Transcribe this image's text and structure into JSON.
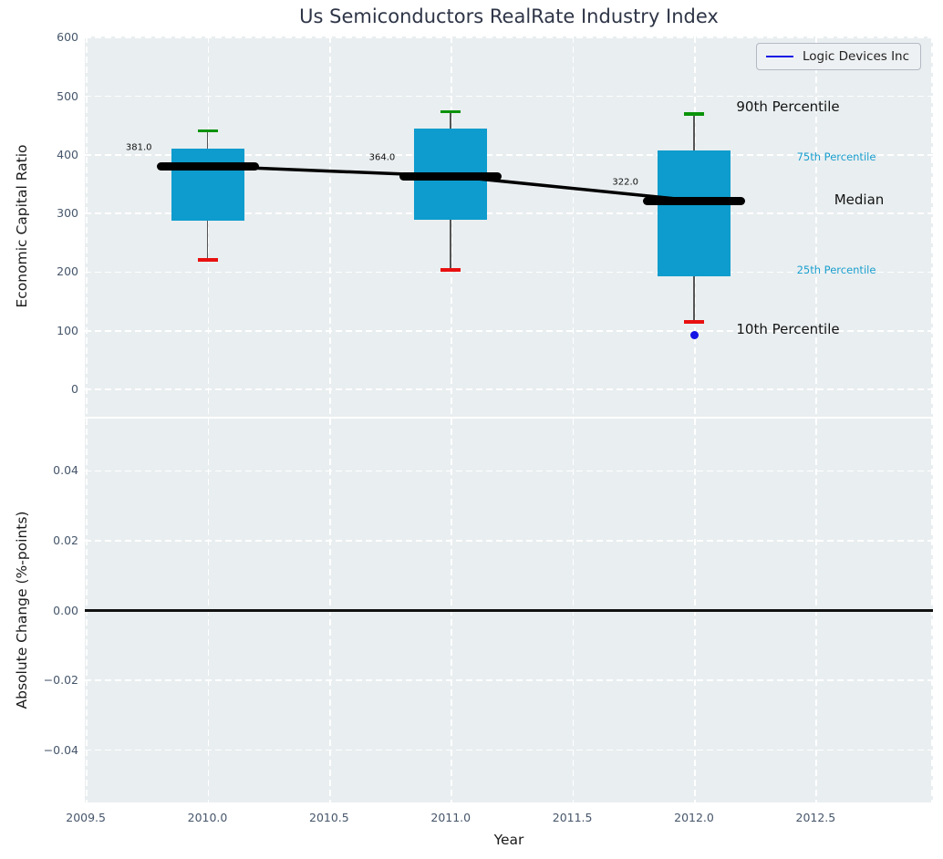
{
  "colors": {
    "box": "#0d9ccd",
    "p90_cap": "#0a930a",
    "p10_cap": "#e81010",
    "median_line": "#000000",
    "company_marker": "#1414e6",
    "axes_background": "#e9eef0",
    "grid": "#ffffff",
    "tick_label": "#46566b",
    "annotation_small": "#1a9fce"
  },
  "chart_data": [
    {
      "type": "boxplot-with-median-line",
      "title": "Us Semiconductors RealRate Industry Index",
      "ylabel": "Economic Capital Ratio",
      "legend": [
        "Logic Devices Inc"
      ],
      "legend_position": "upper right",
      "grid": "on",
      "yticks": [
        0,
        100,
        200,
        300,
        400,
        500,
        600
      ],
      "ytick_labels": [
        "0",
        "100",
        "200",
        "300",
        "400",
        "500",
        "600"
      ],
      "ylim": [
        -46.5,
        602
      ],
      "boxes": [
        {
          "year": 2010,
          "p10": 221,
          "p25": 288,
          "median": 381,
          "p75": 410,
          "p90": 441,
          "median_label": "381.0"
        },
        {
          "year": 2011,
          "p10": 204,
          "p25": 290,
          "median": 364,
          "p75": 445,
          "p90": 474,
          "median_label": "364.0"
        },
        {
          "year": 2012,
          "p10": 115,
          "p25": 193,
          "median": 322,
          "p75": 408,
          "p90": 470,
          "median_label": "322.0"
        }
      ],
      "median_series": {
        "x": [
          2010,
          2011,
          2012
        ],
        "y": [
          381,
          364,
          322
        ]
      },
      "company_point": {
        "name": "Logic Devices Inc",
        "year": 2012,
        "value": 92
      },
      "annotations": [
        "90th Percentile",
        "75th Percentile",
        "Median",
        "25th Percentile",
        "10th Percentile"
      ]
    },
    {
      "type": "line",
      "ylabel": "Absolute Change (%-points)",
      "xlabel": "Year",
      "grid": "on",
      "yticks": [
        0.04,
        0.02,
        0.0,
        -0.02,
        -0.04
      ],
      "ytick_labels": [
        "0.04",
        "0.02",
        "0.00",
        "−0.02",
        "−0.04"
      ],
      "ylim": [
        -0.055,
        0.055
      ],
      "xticks": [
        2009.5,
        2010.0,
        2010.5,
        2011.0,
        2011.5,
        2012.0,
        2012.5
      ],
      "xtick_labels": [
        "2009.5",
        "2010.0",
        "2010.5",
        "2011.0",
        "2011.5",
        "2012.0",
        "2012.5"
      ],
      "xgrid": [
        2009.5,
        2010.0,
        2010.5,
        2011.0,
        2011.5,
        2012.0,
        2012.5,
        2013.0
      ],
      "xlim": [
        2009.5,
        2013.0
      ],
      "zero_line": 0.0,
      "series": []
    }
  ]
}
